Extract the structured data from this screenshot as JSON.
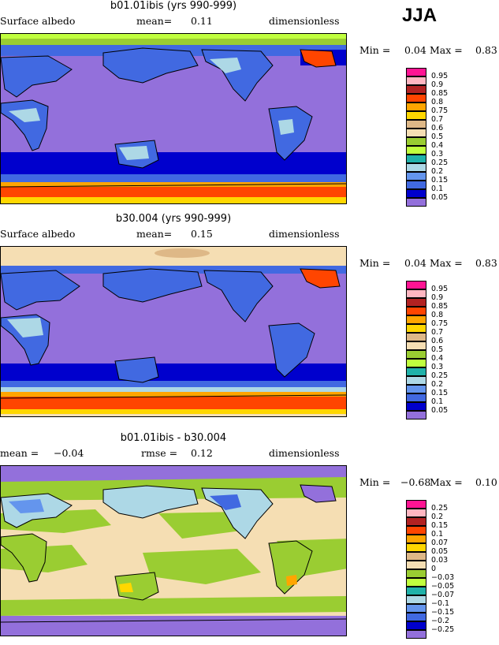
{
  "season": "JJA",
  "panels": [
    {
      "title": "b01.01ibis (yrs 990-999)",
      "left_label": "Surface albedo",
      "stat_label": "mean=",
      "stat_value": "0.11",
      "right_label": "dimensionless",
      "min_label": "Min =",
      "min_value": "0.04",
      "max_label": "Max =",
      "max_value": "0.83",
      "legend_levels": [
        "0.95",
        "0.9",
        "0.85",
        "0.8",
        "0.75",
        "0.7",
        "0.6",
        "0.5",
        "0.4",
        "0.3",
        "0.25",
        "0.2",
        "0.15",
        "0.1",
        "0.05"
      ],
      "legend_colors": [
        "#ff1493",
        "#ffb6c1",
        "#b22222",
        "#ff4500",
        "#ffa500",
        "#ffd700",
        "#deb887",
        "#f5deb3",
        "#9acd32",
        "#c0ff3e",
        "#20b2aa",
        "#add8e6",
        "#6495ed",
        "#4169e1",
        "#0000cd",
        "#9370db"
      ]
    },
    {
      "title": "b30.004 (yrs 990-999)",
      "left_label": "Surface albedo",
      "stat_label": "mean=",
      "stat_value": "0.15",
      "right_label": "dimensionless",
      "min_label": "Min =",
      "min_value": "0.04",
      "max_label": "Max =",
      "max_value": "0.83",
      "legend_levels": [
        "0.95",
        "0.9",
        "0.85",
        "0.8",
        "0.75",
        "0.7",
        "0.6",
        "0.5",
        "0.4",
        "0.3",
        "0.25",
        "0.2",
        "0.15",
        "0.1",
        "0.05"
      ],
      "legend_colors": [
        "#ff1493",
        "#ffb6c1",
        "#b22222",
        "#ff4500",
        "#ffa500",
        "#ffd700",
        "#deb887",
        "#f5deb3",
        "#9acd32",
        "#c0ff3e",
        "#20b2aa",
        "#add8e6",
        "#6495ed",
        "#4169e1",
        "#0000cd",
        "#9370db"
      ]
    },
    {
      "title": "b01.01ibis - b30.004",
      "left_label": "mean =",
      "left_value": "−0.04",
      "stat_label": "rmse =",
      "stat_value": "0.12",
      "right_label": "dimensionless",
      "min_label": "Min =",
      "min_value": "−0.68",
      "max_label": "Max =",
      "max_value": "0.10",
      "legend_levels": [
        "0.25",
        "0.2",
        "0.15",
        "0.1",
        "0.07",
        "0.05",
        "0.03",
        "0",
        "−0.03",
        "−0.05",
        "−0.07",
        "−0.1",
        "−0.15",
        "−0.2",
        "−0.25"
      ],
      "legend_colors": [
        "#ff1493",
        "#ffb6c1",
        "#b22222",
        "#ff4500",
        "#ffa500",
        "#ffd700",
        "#deb887",
        "#f5deb3",
        "#9acd32",
        "#c0ff3e",
        "#20b2aa",
        "#add8e6",
        "#6495ed",
        "#4169e1",
        "#0000cd",
        "#9370db"
      ]
    }
  ],
  "chart_data": [
    {
      "type": "heatmap",
      "title": "b01.01ibis (yrs 990-999)",
      "variable": "Surface albedo",
      "units": "dimensionless",
      "mean": 0.11,
      "min": 0.04,
      "max": 0.83,
      "contour_levels": [
        0.05,
        0.1,
        0.15,
        0.2,
        0.25,
        0.3,
        0.4,
        0.5,
        0.6,
        0.7,
        0.75,
        0.8,
        0.85,
        0.9,
        0.95
      ]
    },
    {
      "type": "heatmap",
      "title": "b30.004 (yrs 990-999)",
      "variable": "Surface albedo",
      "units": "dimensionless",
      "mean": 0.15,
      "min": 0.04,
      "max": 0.83,
      "contour_levels": [
        0.05,
        0.1,
        0.15,
        0.2,
        0.25,
        0.3,
        0.4,
        0.5,
        0.6,
        0.7,
        0.75,
        0.8,
        0.85,
        0.9,
        0.95
      ]
    },
    {
      "type": "heatmap",
      "title": "b01.01ibis - b30.004",
      "units": "dimensionless",
      "mean": -0.04,
      "rmse": 0.12,
      "min": -0.68,
      "max": 0.1,
      "contour_levels": [
        -0.25,
        -0.2,
        -0.15,
        -0.1,
        -0.07,
        -0.05,
        -0.03,
        0,
        0.03,
        0.05,
        0.07,
        0.1,
        0.15,
        0.2,
        0.25
      ]
    }
  ]
}
